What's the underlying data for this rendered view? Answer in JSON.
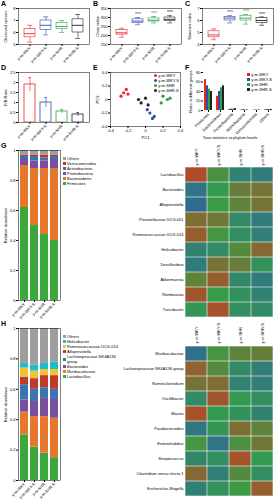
{
  "chart_data": [
    {
      "panel": "A",
      "type": "box",
      "ylabel": "Observed species",
      "categories": [
        "y-m-WKY",
        "y-m-WKY-S",
        "y-m-SHR",
        "y-m-SHR-S"
      ],
      "colors": [
        "#e8262a",
        "#2f4ea3",
        "#2ea043",
        "#222222"
      ],
      "stats": {
        "min": [
          5.2,
          5.8,
          6.0,
          5.5
        ],
        "q1": [
          5.6,
          6.2,
          6.3,
          6.0
        ],
        "median": [
          5.9,
          6.6,
          6.5,
          6.6
        ],
        "q3": [
          6.3,
          7.0,
          6.8,
          7.1
        ],
        "max": [
          6.6,
          7.3,
          7.0,
          7.5
        ]
      },
      "ylim": [
        5,
        8
      ],
      "yticks": [
        5,
        6,
        7,
        8
      ]
    },
    {
      "panel": "B",
      "type": "box",
      "ylabel": "Chao index",
      "categories": [
        "y-m-WKY",
        "y-m-WKY-S",
        "y-m-SHR",
        "y-m-SHR-S"
      ],
      "colors": [
        "#e8262a",
        "#2f4ea3",
        "#2ea043",
        "#222222"
      ],
      "stats": {
        "min": [
          190,
          260,
          270,
          270
        ],
        "q1": [
          205,
          270,
          278,
          280
        ],
        "median": [
          215,
          280,
          285,
          290
        ],
        "q3": [
          230,
          290,
          295,
          300
        ],
        "max": [
          240,
          300,
          305,
          310
        ]
      },
      "annotations": [
        {
          "category": "y-m-WKY-S",
          "text": "***"
        },
        {
          "category": "y-m-SHR",
          "text": "***"
        },
        {
          "category": "y-m-SHR-S",
          "text": "***"
        }
      ],
      "ylim": [
        150,
        350
      ],
      "yticks": [
        150,
        200,
        250,
        300,
        350
      ]
    },
    {
      "panel": "C",
      "type": "box",
      "ylabel": "Shannon index",
      "categories": [
        "y-m-WKY",
        "y-m-WKY-S",
        "y-m-SHR",
        "y-m-SHR-S"
      ],
      "colors": [
        "#e8262a",
        "#2f4ea3",
        "#2ea043",
        "#222222"
      ],
      "stats": {
        "min": [
          4.4,
          5.8,
          5.7,
          5.6
        ],
        "q1": [
          4.6,
          6.0,
          6.0,
          5.8
        ],
        "median": [
          4.8,
          6.2,
          6.2,
          6.0
        ],
        "q3": [
          5.1,
          6.3,
          6.4,
          6.2
        ],
        "max": [
          5.3,
          6.4,
          6.5,
          6.3
        ]
      },
      "annotations": [
        {
          "category": "y-m-WKY-S",
          "text": "***"
        },
        {
          "category": "y-m-SHR",
          "text": "***"
        },
        {
          "category": "y-m-SHR-S",
          "text": "***"
        }
      ],
      "ylim": [
        4,
        7
      ],
      "yticks": [
        4,
        5,
        6,
        7
      ]
    },
    {
      "panel": "D",
      "type": "bar",
      "ylabel": "F/B Ratio",
      "categories": [
        "y-m-WKY",
        "y-m-WKY-S",
        "y-m-SHR",
        "y-m-SHR-S"
      ],
      "colors": [
        "#e8262a",
        "#2f4ea3",
        "#2ea043",
        "#222222"
      ],
      "values": [
        1.9,
        1.0,
        0.55,
        0.4
      ],
      "errors": [
        0.35,
        0.25,
        0.1,
        0.1
      ],
      "ylim": [
        0,
        2.5
      ],
      "yticks": [
        0,
        0.5,
        1,
        1.5,
        2,
        2.5
      ]
    },
    {
      "panel": "E",
      "type": "scatter",
      "xlabel": "PC1",
      "ylabel": "PC2",
      "legend": "top-right",
      "series": [
        {
          "name": "y-m-WKY",
          "color": "#e8262a",
          "x": [
            -0.25,
            -0.22,
            -0.28,
            -0.2
          ],
          "y": [
            0.1,
            0.15,
            0.05,
            0.08
          ]
        },
        {
          "name": "y-m-WKY-S",
          "color": "#2f4ea3",
          "x": [
            0.05,
            0.1,
            0.02,
            0.08
          ],
          "y": [
            -0.2,
            -0.25,
            -0.15,
            -0.28
          ]
        },
        {
          "name": "y-m-SHR",
          "color": "#2ea043",
          "x": [
            0.2,
            0.25,
            0.18,
            0.28
          ],
          "y": [
            0.05,
            0.0,
            -0.05,
            0.02
          ]
        },
        {
          "name": "y-m-SHR-S",
          "color": "#222222",
          "x": [
            -0.05,
            0.0,
            -0.08,
            0.03
          ],
          "y": [
            -0.05,
            0.02,
            0.0,
            -0.08
          ]
        }
      ],
      "xlim": [
        -0.4,
        0.4
      ],
      "xticks": [
        -0.4,
        -0.2,
        0,
        0.2,
        0.4
      ],
      "ylim": [
        -0.4,
        0.4
      ],
      "yticks": [
        -0.4,
        -0.2,
        0,
        0.2,
        0.4
      ]
    },
    {
      "panel": "F",
      "type": "bar",
      "ylabel": "Ratio in different groups",
      "xlabel": "Taxa statistics at phylum levels",
      "legend": "top-right",
      "categories": [
        "Firmicutes",
        "Bacteroidetes",
        "Proteobacteria",
        "Actinobacteria",
        "Verrucomicrobia",
        "Others"
      ],
      "series": [
        {
          "name": "y-m-WKY",
          "color": "#e8262a",
          "values": [
            65,
            30,
            2,
            1,
            0.5,
            1.5
          ]
        },
        {
          "name": "y-m-WKY-S",
          "color": "#2f4ea3",
          "values": [
            52,
            40,
            3,
            2,
            1,
            2
          ]
        },
        {
          "name": "y-m-SHR",
          "color": "#2ea043",
          "values": [
            45,
            48,
            3,
            1,
            1,
            2
          ]
        },
        {
          "name": "y-m-SHR-S",
          "color": "#222222",
          "values": [
            40,
            52,
            4,
            1,
            1,
            2
          ]
        }
      ],
      "ylim": [
        0,
        80
      ],
      "yticks": [
        0,
        20,
        40,
        60,
        80
      ]
    },
    {
      "panel": "G",
      "type": "bar",
      "stacked": true,
      "ylabel": "Relative abundance",
      "legend": "right",
      "categories": [
        "y-m-WKY",
        "y-m-WKY-S",
        "y-m-SHR",
        "y-m-SHR-S"
      ],
      "series": [
        {
          "name": "Firmicutes",
          "color": "#3aa83a",
          "values": [
            0.62,
            0.5,
            0.44,
            0.4
          ]
        },
        {
          "name": "Bacteroidetes",
          "color": "#e8772e",
          "values": [
            0.28,
            0.38,
            0.44,
            0.48
          ]
        },
        {
          "name": "Proteobacteria",
          "color": "#7b4fa0",
          "values": [
            0.04,
            0.05,
            0.05,
            0.06
          ]
        },
        {
          "name": "Actinobacteria",
          "color": "#3b75af",
          "values": [
            0.02,
            0.03,
            0.02,
            0.02
          ]
        },
        {
          "name": "Verrucomicrobia",
          "color": "#c0392b",
          "values": [
            0.01,
            0.01,
            0.02,
            0.01
          ]
        },
        {
          "name": "Others",
          "color": "#9e9e9e",
          "values": [
            0.03,
            0.03,
            0.03,
            0.03
          ]
        }
      ],
      "ylim": [
        0,
        1
      ],
      "yticks": [
        0,
        0.2,
        0.4,
        0.6,
        0.8,
        1
      ]
    },
    {
      "type": "heatmap",
      "columns": [
        "y-m-WKY",
        "y-m-WKY-S",
        "y-m-SHR",
        "y-m-SHR-S"
      ],
      "rows": [
        "Lactobacillus",
        "Bacteroides",
        "Alloprevotella",
        "Prevotellaceae UCG-001",
        "Ruminococcaceae UCG-014",
        "Helicobacter",
        "Desulfovibrio",
        "Akkermansia",
        "Romboutsia",
        "Turicibacter"
      ],
      "cells": [
        [
          1.5,
          0.3,
          -0.8,
          -1.0
        ],
        [
          -1.2,
          -0.2,
          0.6,
          0.8
        ],
        [
          -1.4,
          0.1,
          0.5,
          0.8
        ],
        [
          0.9,
          0.7,
          -0.6,
          -1.0
        ],
        [
          1.2,
          0.2,
          -0.5,
          -0.9
        ],
        [
          -0.8,
          -0.6,
          0.4,
          1.0
        ],
        [
          -1.0,
          0.8,
          0.6,
          -0.4
        ],
        [
          0.5,
          1.2,
          -0.7,
          -1.0
        ],
        [
          1.3,
          -0.1,
          -0.4,
          -0.8
        ],
        [
          -0.3,
          1.4,
          -0.5,
          -0.6
        ]
      ],
      "zlim": [
        -2,
        2
      ]
    },
    {
      "panel": "H",
      "type": "bar",
      "stacked": true,
      "ylabel": "Relative abundance",
      "legend": "right",
      "categories": [
        "y-m-WKY",
        "y-m-WKY-S",
        "y-m-SHR",
        "y-m-SHR-S"
      ],
      "series": [
        {
          "name": "Lactobacillus",
          "color": "#3aa83a",
          "values": [
            0.3,
            0.22,
            0.18,
            0.15
          ]
        },
        {
          "name": "Muribaculaceae",
          "color": "#e8772e",
          "values": [
            0.15,
            0.2,
            0.24,
            0.26
          ]
        },
        {
          "name": "Bacteroides",
          "color": "#7b4fa0",
          "values": [
            0.08,
            0.1,
            0.12,
            0.13
          ]
        },
        {
          "name": "Lachnospiraceae NK4A136 group",
          "color": "#3b75af",
          "values": [
            0.1,
            0.08,
            0.07,
            0.06
          ]
        },
        {
          "name": "Alloprevotella",
          "color": "#c0392b",
          "values": [
            0.05,
            0.07,
            0.08,
            0.09
          ]
        },
        {
          "name": "Ruminococcaceae UCG-014",
          "color": "#f1c232",
          "values": [
            0.06,
            0.05,
            0.04,
            0.04
          ]
        },
        {
          "name": "Helicobacter",
          "color": "#17becf",
          "values": [
            0.03,
            0.04,
            0.04,
            0.05
          ]
        },
        {
          "name": "Others",
          "color": "#9e9e9e",
          "values": [
            0.23,
            0.24,
            0.23,
            0.22
          ]
        }
      ],
      "ylim": [
        0,
        1
      ],
      "yticks": [
        0,
        0.2,
        0.4,
        0.6,
        0.8,
        1
      ]
    },
    {
      "type": "heatmap",
      "columns": [
        "y-m-WKY",
        "y-m-WKY-S",
        "y-m-SHR",
        "y-m-SHR-S"
      ],
      "rows": [
        "Muribaculaceae",
        "Lachnospiraceae NK4A136 group",
        "Ruminiclostridium",
        "Oscillibacter",
        "Blautia",
        "Parabacteroides",
        "Enterorhabdus",
        "Streptococcus",
        "Clostridium sensu stricto 1",
        "Escherichia-Shigella"
      ],
      "cells": [
        [
          -1.3,
          0.2,
          0.5,
          0.6
        ],
        [
          1.1,
          0.4,
          -0.6,
          -0.9
        ],
        [
          0.8,
          0.9,
          -0.8,
          -0.9
        ],
        [
          -0.6,
          1.3,
          -0.2,
          -0.5
        ],
        [
          1.4,
          -0.2,
          -0.4,
          -0.8
        ],
        [
          -1.1,
          -0.3,
          0.9,
          0.5
        ],
        [
          0.2,
          -1.2,
          0.3,
          0.7
        ],
        [
          -0.7,
          -0.5,
          1.4,
          -0.2
        ],
        [
          1.0,
          -0.9,
          0.4,
          -0.5
        ],
        [
          -0.9,
          -0.4,
          0.1,
          1.2
        ]
      ],
      "zlim": [
        -2,
        2
      ]
    }
  ]
}
